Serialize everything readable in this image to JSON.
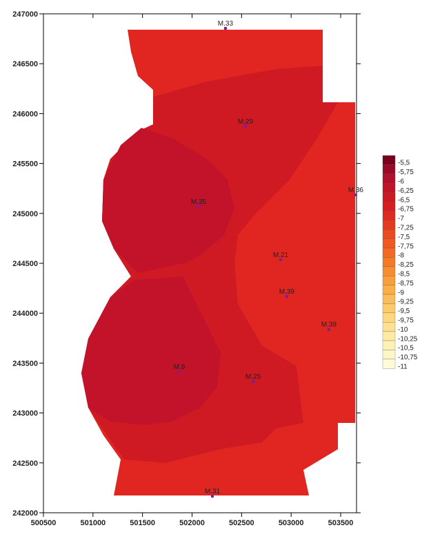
{
  "chart_data": {
    "type": "contour",
    "xlim": [
      500500,
      503660
    ],
    "ylim": [
      242000,
      247000
    ],
    "xticks": [
      500500,
      501000,
      501500,
      502000,
      502500,
      503000,
      503500
    ],
    "yticks": [
      242000,
      242500,
      243000,
      243500,
      244000,
      244500,
      245000,
      245500,
      246000,
      246500,
      247000
    ],
    "points": {
      "color": "#7b1fa2",
      "names": [
        "M.33",
        "M.29",
        "M.35",
        "M.36",
        "M.21",
        "M.39",
        "M.38",
        "M.9",
        "M.25",
        "M.31"
      ],
      "x": [
        502337,
        502539,
        502066,
        503652,
        502894,
        502956,
        503381,
        501871,
        502616,
        502205
      ],
      "y": [
        246855,
        245871,
        245068,
        245186,
        244535,
        244169,
        243837,
        243413,
        243316,
        242166
      ]
    },
    "colorbar": {
      "levels": [
        {
          "value": -5.5,
          "label": "-5,5"
        },
        {
          "value": -5.75,
          "label": "-5,75"
        },
        {
          "value": -6,
          "label": "-6"
        },
        {
          "value": -6.25,
          "label": "-6,25"
        },
        {
          "value": -6.5,
          "label": "-6,5"
        },
        {
          "value": -6.75,
          "label": "-6,75"
        },
        {
          "value": -7,
          "label": "-7"
        },
        {
          "value": -7.25,
          "label": "-7,25"
        },
        {
          "value": -7.5,
          "label": "-7,5"
        },
        {
          "value": -7.75,
          "label": "-7,75"
        },
        {
          "value": -8,
          "label": "-8"
        },
        {
          "value": -8.25,
          "label": "-8,25"
        },
        {
          "value": -8.5,
          "label": "-8,5"
        },
        {
          "value": -8.75,
          "label": "-8,75"
        },
        {
          "value": -9,
          "label": "-9"
        },
        {
          "value": -9.25,
          "label": "-9,25"
        },
        {
          "value": -9.5,
          "label": "-9,5"
        },
        {
          "value": -9.75,
          "label": "-9,75"
        },
        {
          "value": -10,
          "label": "-10"
        },
        {
          "value": -10.25,
          "label": "-10,25"
        },
        {
          "value": -10.5,
          "label": "-10,5"
        },
        {
          "value": -10.75,
          "label": "-10,75"
        },
        {
          "value": -11,
          "label": "-11"
        }
      ],
      "colors": [
        "#7a0020",
        "#9a0a28",
        "#b0102a",
        "#c01428",
        "#cc1a22",
        "#d81e20",
        "#e02a1e",
        "#e63a1e",
        "#ec4a20",
        "#f05a22",
        "#f26a24",
        "#f47a28",
        "#f68c30",
        "#f89e3a",
        "#faae48",
        "#fbbd58",
        "#fcca6a",
        "#fdd67e",
        "#fde190",
        "#feeaa4",
        "#fef1b6",
        "#fff6c8",
        "#fffad8"
      ]
    }
  }
}
